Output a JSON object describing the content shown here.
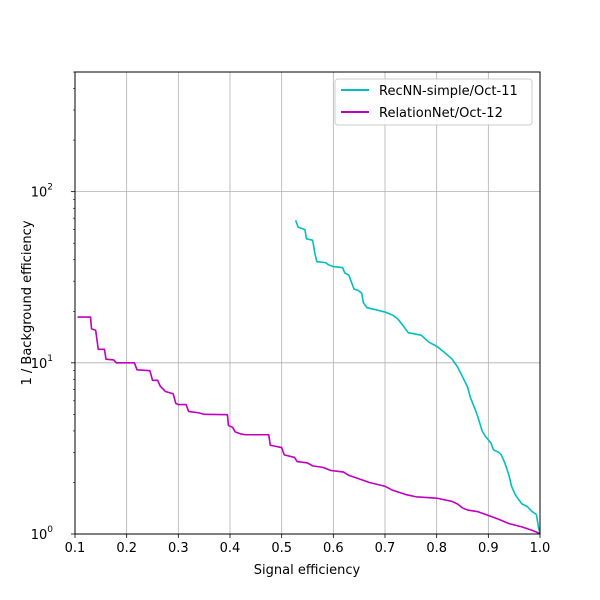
{
  "chart_data": {
    "type": "line",
    "title": "",
    "xlabel": "Signal efficiency",
    "ylabel": "1 / Background efficiency",
    "xlim": [
      0.1,
      1.0
    ],
    "ylim": [
      1,
      500
    ],
    "yscale": "log",
    "grid": true,
    "legend_position": "top-right",
    "x_ticks": [
      "0.1",
      "0.2",
      "0.3",
      "0.4",
      "0.5",
      "0.6",
      "0.7",
      "0.8",
      "0.9",
      "1.0"
    ],
    "y_ticks": [
      {
        "base": "10",
        "exp": "0",
        "value": 1
      },
      {
        "base": "10",
        "exp": "1",
        "value": 10
      },
      {
        "base": "10",
        "exp": "2",
        "value": 100
      }
    ],
    "series": [
      {
        "name": "RecNN-simple/Oct-11",
        "color": "#00bfbf",
        "points": [
          [
            0.527,
            68.0
          ],
          [
            0.532,
            62.0
          ],
          [
            0.545,
            60.0
          ],
          [
            0.548,
            53.0
          ],
          [
            0.56,
            52.0
          ],
          [
            0.564,
            44.0
          ],
          [
            0.568,
            39.0
          ],
          [
            0.585,
            38.5
          ],
          [
            0.59,
            37.5
          ],
          [
            0.6,
            36.5
          ],
          [
            0.618,
            36.0
          ],
          [
            0.622,
            33.5
          ],
          [
            0.63,
            32.5
          ],
          [
            0.64,
            27.0
          ],
          [
            0.648,
            26.5
          ],
          [
            0.655,
            25.5
          ],
          [
            0.658,
            22.5
          ],
          [
            0.665,
            21.0
          ],
          [
            0.68,
            20.5
          ],
          [
            0.7,
            19.8
          ],
          [
            0.715,
            19.0
          ],
          [
            0.725,
            18.0
          ],
          [
            0.735,
            16.5
          ],
          [
            0.745,
            15.0
          ],
          [
            0.77,
            14.5
          ],
          [
            0.785,
            13.2
          ],
          [
            0.8,
            12.5
          ],
          [
            0.815,
            11.5
          ],
          [
            0.83,
            10.5
          ],
          [
            0.84,
            9.5
          ],
          [
            0.85,
            8.3
          ],
          [
            0.86,
            7.2
          ],
          [
            0.865,
            6.3
          ],
          [
            0.875,
            5.3
          ],
          [
            0.88,
            4.8
          ],
          [
            0.888,
            4.0
          ],
          [
            0.895,
            3.7
          ],
          [
            0.905,
            3.4
          ],
          [
            0.91,
            3.1
          ],
          [
            0.92,
            3.0
          ],
          [
            0.925,
            2.9
          ],
          [
            0.932,
            2.6
          ],
          [
            0.94,
            2.2
          ],
          [
            0.945,
            1.9
          ],
          [
            0.952,
            1.7
          ],
          [
            0.958,
            1.6
          ],
          [
            0.965,
            1.5
          ],
          [
            0.975,
            1.45
          ],
          [
            0.985,
            1.35
          ],
          [
            0.993,
            1.3
          ],
          [
            0.997,
            1.1
          ],
          [
            1.0,
            1.0
          ]
        ]
      },
      {
        "name": "RelationNet/Oct-12",
        "color": "#bf00bf",
        "points": [
          [
            0.105,
            18.5
          ],
          [
            0.13,
            18.5
          ],
          [
            0.132,
            15.8
          ],
          [
            0.14,
            15.5
          ],
          [
            0.145,
            12.0
          ],
          [
            0.157,
            12.0
          ],
          [
            0.16,
            10.5
          ],
          [
            0.175,
            10.4
          ],
          [
            0.18,
            10.0
          ],
          [
            0.215,
            10.0
          ],
          [
            0.22,
            9.1
          ],
          [
            0.245,
            9.0
          ],
          [
            0.25,
            7.9
          ],
          [
            0.26,
            7.9
          ],
          [
            0.265,
            7.3
          ],
          [
            0.275,
            6.8
          ],
          [
            0.29,
            6.6
          ],
          [
            0.295,
            5.8
          ],
          [
            0.3,
            5.7
          ],
          [
            0.315,
            5.7
          ],
          [
            0.32,
            5.2
          ],
          [
            0.34,
            5.1
          ],
          [
            0.35,
            5.0
          ],
          [
            0.395,
            4.98
          ],
          [
            0.397,
            4.3
          ],
          [
            0.405,
            4.2
          ],
          [
            0.41,
            3.95
          ],
          [
            0.42,
            3.85
          ],
          [
            0.43,
            3.8
          ],
          [
            0.475,
            3.8
          ],
          [
            0.478,
            3.3
          ],
          [
            0.5,
            3.2
          ],
          [
            0.505,
            2.9
          ],
          [
            0.525,
            2.8
          ],
          [
            0.53,
            2.65
          ],
          [
            0.55,
            2.6
          ],
          [
            0.56,
            2.5
          ],
          [
            0.58,
            2.45
          ],
          [
            0.595,
            2.35
          ],
          [
            0.62,
            2.3
          ],
          [
            0.63,
            2.2
          ],
          [
            0.65,
            2.1
          ],
          [
            0.67,
            2.0
          ],
          [
            0.7,
            1.9
          ],
          [
            0.715,
            1.8
          ],
          [
            0.74,
            1.7
          ],
          [
            0.76,
            1.65
          ],
          [
            0.8,
            1.62
          ],
          [
            0.83,
            1.55
          ],
          [
            0.84,
            1.5
          ],
          [
            0.85,
            1.42
          ],
          [
            0.86,
            1.38
          ],
          [
            0.88,
            1.35
          ],
          [
            0.895,
            1.3
          ],
          [
            0.92,
            1.22
          ],
          [
            0.94,
            1.15
          ],
          [
            0.965,
            1.1
          ],
          [
            0.985,
            1.05
          ],
          [
            0.995,
            1.02
          ],
          [
            1.0,
            1.0
          ]
        ]
      }
    ]
  }
}
